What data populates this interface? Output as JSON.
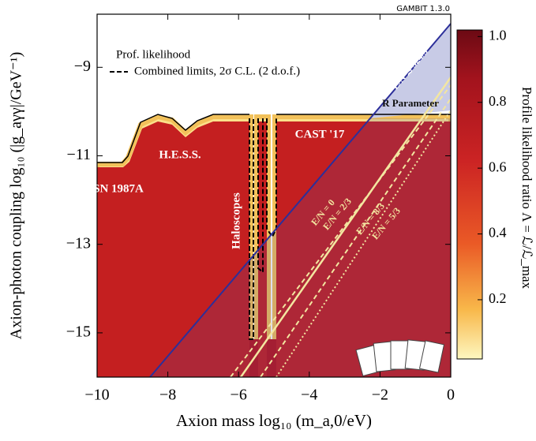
{
  "chart_data": {
    "type": "likelihood-map",
    "badge": "GAMBIT 1.3.0",
    "x_label": "Axion mass log₁₀ (m_a,0/eV)",
    "y_label": "Axion-photon coupling log₁₀ (|g_aγγ|/GeV⁻¹)",
    "colorbar_label": "Profile likelihood ratio Λ = ℒ/ℒ_max",
    "legend": [
      "Prof. likelihood",
      "Combined limits, 2σ C.L. (2 d.o.f.)"
    ],
    "annotations": [
      "SN 1987A",
      "H.E.S.S.",
      "Haloscopes",
      "CAST '17",
      "R Parameter",
      "E/N ≲ 524/3",
      "E/N = 0",
      "E/N = 2/3",
      "E/N = 8/3",
      "E/N = 5/3"
    ],
    "xlim": [
      -10,
      0
    ],
    "xticks": [
      {
        "value": -10,
        "label": "−10"
      },
      {
        "value": -8,
        "label": "−8"
      },
      {
        "value": -6,
        "label": "−6"
      },
      {
        "value": -4,
        "label": "−4"
      },
      {
        "value": -2,
        "label": "−2"
      },
      0
    ],
    "ylim": [
      -16,
      -7.8
    ],
    "yticks": [
      {
        "value": -9,
        "label": "−9"
      },
      {
        "value": -11,
        "label": "−11"
      },
      {
        "value": -13,
        "label": "−13"
      },
      {
        "value": -15,
        "label": "−15"
      }
    ],
    "clim": [
      0.02,
      1.02
    ],
    "cticks": [
      0.2,
      0.4,
      0.6,
      0.8,
      {
        "value": 1.0,
        "label": "1.0"
      }
    ]
  }
}
